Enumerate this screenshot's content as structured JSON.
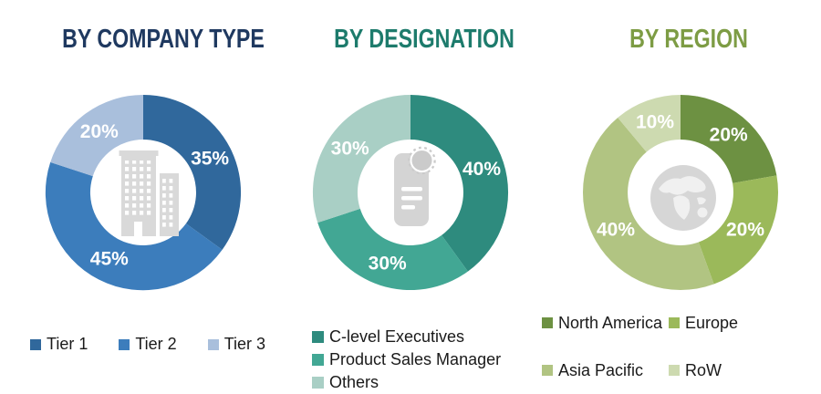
{
  "figure": {
    "background_color": "#FFFFFF",
    "legend_text_color": "#1A1A1A"
  },
  "chart_data": [
    {
      "type": "donut",
      "title": "BY COMPANY TYPE",
      "title_color": "#1F3960",
      "categories": [
        "Tier 1",
        "Tier 2",
        "Tier 3"
      ],
      "values": [
        35,
        45,
        20
      ],
      "labels": [
        "35%",
        "45%",
        "20%"
      ],
      "colors": [
        "#30689C",
        "#3C7DBC",
        "#A9BFDC"
      ],
      "label_color": "#FFFFFF",
      "center_icon": "buildings-icon",
      "legend_position": "bottom-horizontal",
      "start_angle_deg": 0,
      "direction": "clockwise"
    },
    {
      "type": "donut",
      "title": "BY DESIGNATION",
      "title_color": "#1D7B6C",
      "categories": [
        "C-level Executives",
        "Product Sales Manager",
        "Others"
      ],
      "values": [
        40,
        30,
        30
      ],
      "labels": [
        "40%",
        "30%",
        "30%"
      ],
      "colors": [
        "#2E8B7E",
        "#42A794",
        "#A9CFC5"
      ],
      "label_color": "#FFFFFF",
      "center_icon": "certificate-icon",
      "legend_position": "bottom-vertical",
      "start_angle_deg": 0,
      "direction": "clockwise"
    },
    {
      "type": "donut",
      "title": "BY REGION",
      "title_color": "#7D9C44",
      "categories": [
        "North America",
        "Europe",
        "Asia Pacific",
        "RoW"
      ],
      "values": [
        20,
        20,
        40,
        10
      ],
      "labels": [
        "20%",
        "20%",
        "40%",
        "10%"
      ],
      "colors": [
        "#6D9142",
        "#9BB95A",
        "#B1C482",
        "#CDDAB0"
      ],
      "label_color": "#FFFFFF",
      "center_icon": "globe-icon",
      "legend_position": "bottom-grid-2col",
      "start_angle_deg": 0,
      "direction": "clockwise"
    }
  ]
}
